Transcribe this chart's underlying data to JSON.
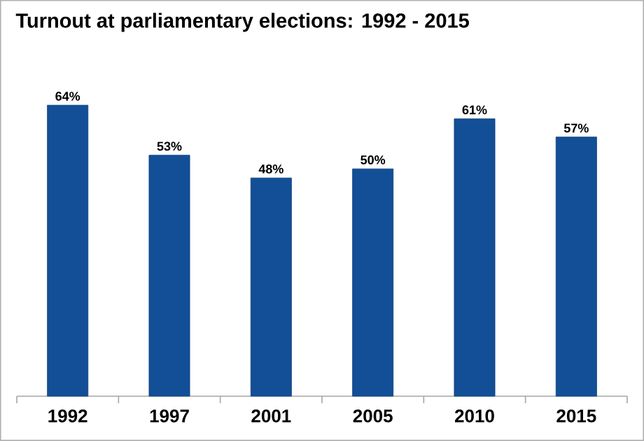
{
  "chart_data": {
    "type": "bar",
    "title": "Turnout at parliamentary elections: 1992 - 2015",
    "categories": [
      "1992",
      "1997",
      "2001",
      "2005",
      "2010",
      "2015"
    ],
    "values": [
      64,
      53,
      48,
      50,
      61,
      57
    ],
    "value_labels": [
      "64%",
      "53%",
      "48%",
      "50%",
      "61%",
      "57%"
    ],
    "color": "#124f97"
  }
}
